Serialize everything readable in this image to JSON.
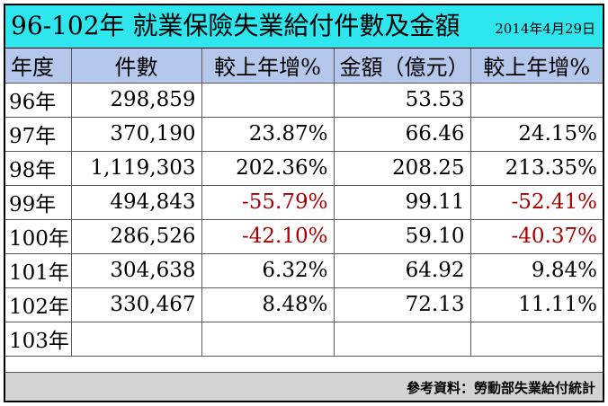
{
  "title": "96-102年 就業保險失業給付件數及金額",
  "date": "2014年4月29日",
  "headers": [
    "年度",
    "件數",
    "較上年增%",
    "金額（億元）",
    "較上年增%"
  ],
  "rows": [
    {
      "year": "96年",
      "count": "298,859",
      "count_growth": "",
      "amount": "53.53",
      "amount_growth": ""
    },
    {
      "year": "97年",
      "count": "370,190",
      "count_growth": "23.87%",
      "amount": "66.46",
      "amount_growth": "24.15%"
    },
    {
      "year": "98年",
      "count": "1,119,303",
      "count_growth": "202.36%",
      "amount": "208.25",
      "amount_growth": "213.35%"
    },
    {
      "year": "99年",
      "count": "494,843",
      "count_growth": "-55.79%",
      "amount": "99.11",
      "amount_growth": "-52.41%"
    },
    {
      "year": "100年",
      "count": "286,526",
      "count_growth": "-42.10%",
      "amount": "59.10",
      "amount_growth": "-40.37%"
    },
    {
      "year": "101年",
      "count": "304,638",
      "count_growth": "6.32%",
      "amount": "64.92",
      "amount_growth": "9.84%"
    },
    {
      "year": "102年",
      "count": "330,467",
      "count_growth": "8.48%",
      "amount": "72.13",
      "amount_growth": "11.11%"
    },
    {
      "year": "103年",
      "count": "",
      "count_growth": "",
      "amount": "",
      "amount_growth": ""
    }
  ],
  "source": "參考資料：勞動部失業給付統計",
  "colors": {
    "title_bg": "#2ee6ee",
    "header_bg": "#b5c7ea",
    "footer_bg": "#d4d4d4",
    "negative": "#a80000"
  }
}
